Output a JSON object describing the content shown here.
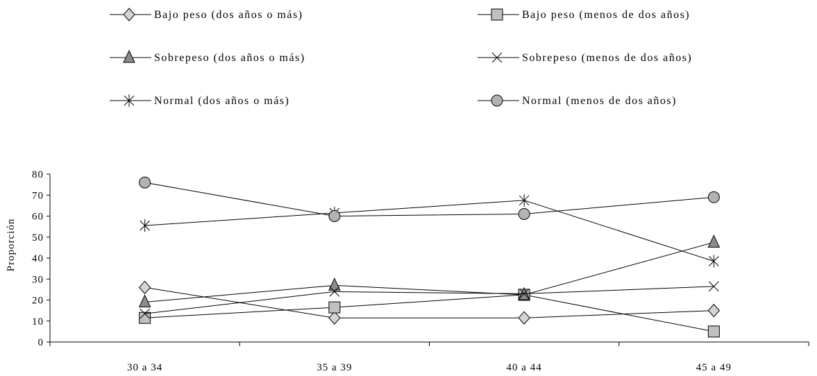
{
  "chart_data": {
    "type": "line",
    "title": "",
    "xlabel": "",
    "ylabel": "Proporción",
    "ylim": [
      0,
      80
    ],
    "yticks": [
      0,
      10,
      20,
      30,
      40,
      50,
      60,
      70,
      80
    ],
    "categories": [
      "30 a 34",
      "35 a 39",
      "40 a 44",
      "45 a 49"
    ],
    "grid": false,
    "legend_position": "top",
    "series": [
      {
        "name": "Bajo peso (dos años o más)",
        "marker": "diamond",
        "values": [
          26,
          11.5,
          11.5,
          15
        ]
      },
      {
        "name": "Bajo peso (menos de dos años)",
        "marker": "square",
        "values": [
          11.5,
          16.5,
          22.5,
          5
        ]
      },
      {
        "name": "Sobrepeso (dos años o más)",
        "marker": "triangle",
        "values": [
          19,
          27,
          22.5,
          47.5
        ]
      },
      {
        "name": "Sobrepeso (menos de dos años)",
        "marker": "x",
        "values": [
          13.5,
          24,
          23,
          26.5
        ]
      },
      {
        "name": "Normal (dos años o más)",
        "marker": "asterisk",
        "values": [
          55.5,
          61.5,
          67.5,
          38.5
        ]
      },
      {
        "name": "Normal (menos de dos años)",
        "marker": "circle",
        "values": [
          76,
          60,
          61,
          69
        ]
      }
    ]
  }
}
